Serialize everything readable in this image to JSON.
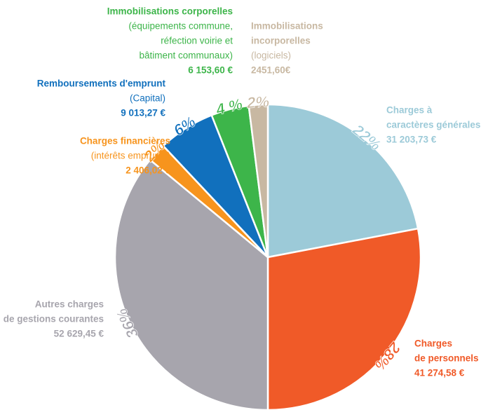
{
  "chart_data": {
    "type": "pie",
    "categories": [
      [
        "Charges à",
        "caractères générales"
      ],
      [
        "Charges",
        "de personnels"
      ],
      [
        "Autres charges",
        "de gestions courantes"
      ],
      [
        "Charges financières"
      ],
      [
        "Remboursements d'emprunt"
      ],
      [
        "Immobilisations corporelles"
      ],
      [
        "Immobilisations",
        "incorporelles"
      ]
    ],
    "details": [
      [],
      [],
      [],
      [
        "(intérêts emprunts)"
      ],
      [
        "(Capital)"
      ],
      [
        "(équipements commune,",
        "réfection voirie et",
        "bâtiment communaux)"
      ],
      [
        "(logiciels)"
      ]
    ],
    "amounts": [
      "31 203,73 €",
      "41 274,58 €",
      "52 629,45 €",
      "2 406,02 €",
      "9 013,27 €",
      "6 153,60 €",
      "2451,60€"
    ],
    "values": [
      22,
      28,
      36,
      2,
      6,
      4,
      2
    ],
    "value_labels": [
      "22%",
      "28%",
      "36%",
      "2%",
      "6%",
      "4 %",
      "2%"
    ],
    "colors": [
      "#9ccad8",
      "#f05a28",
      "#a7a5ad",
      "#f7941d",
      "#1170bd",
      "#3db54a",
      "#c8b8a2"
    ]
  }
}
